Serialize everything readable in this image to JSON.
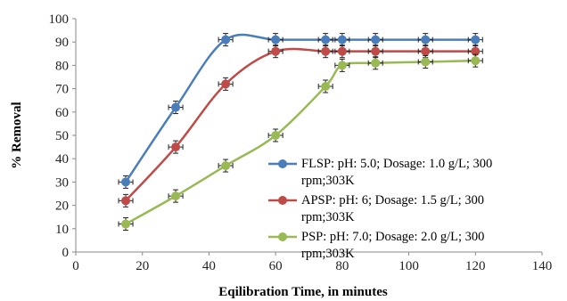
{
  "chart_data": {
    "type": "line",
    "title": "",
    "xlabel": "Eqilibration Time,  in minutes",
    "ylabel": "% Removal",
    "xlim": [
      0,
      140
    ],
    "ylim": [
      0,
      100
    ],
    "x_ticks": [
      "0",
      "20",
      "40",
      "60",
      "80",
      "100",
      "120",
      "140"
    ],
    "y_ticks": [
      "0",
      "10",
      "20",
      "30",
      "40",
      "50",
      "60",
      "70",
      "80",
      "90",
      "100"
    ],
    "grid": false,
    "legend_position": "right",
    "error_bars": true,
    "series": [
      {
        "name_lines": [
          "FLSP: pH: 5.0;  Dosage: 1.0 g/L;   300",
          "rpm;303K"
        ],
        "color": "#4a7ebb",
        "marker": "diamond",
        "x": [
          15,
          30,
          45,
          60,
          75,
          80,
          90,
          105,
          120
        ],
        "y": [
          30,
          62,
          91,
          91,
          91,
          91,
          91,
          91,
          91
        ]
      },
      {
        "name_lines": [
          "APSP: pH: 6; Dosage: 1.5 g/L;   300",
          "rpm;303K"
        ],
        "color": "#be4b48",
        "marker": "square",
        "x": [
          15,
          30,
          45,
          60,
          75,
          80,
          90,
          105,
          120
        ],
        "y": [
          22,
          45,
          72,
          86,
          86,
          86,
          86,
          86,
          86
        ]
      },
      {
        "name_lines": [
          "PSP:  pH: 7.0; Dosage: 2.0 g/L;    300",
          "rpm;303K"
        ],
        "color": "#98b954",
        "marker": "triangle",
        "x": [
          15,
          30,
          45,
          60,
          75,
          80,
          90,
          105,
          120
        ],
        "y": [
          12,
          24,
          37,
          50,
          71,
          80,
          81,
          81.5,
          82
        ]
      }
    ]
  }
}
